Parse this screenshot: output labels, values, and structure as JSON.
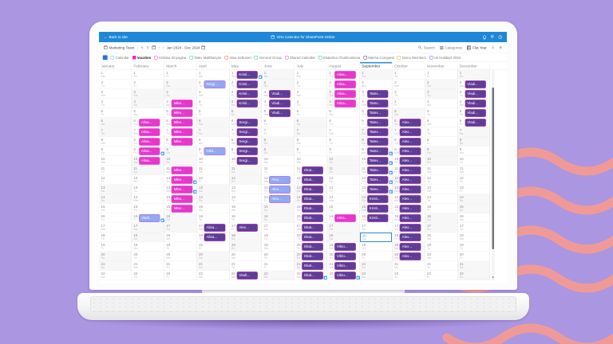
{
  "palette": {
    "background": "#ab96e2",
    "wave": "#f09a97",
    "titlebar_blue": "#1f87d7",
    "accent_blue": "#2a8cdd",
    "select_all_blue": "#2a6fd6",
    "variants": {
      "magenta": {
        "bg": "#e637cb",
        "border": "#f57fe4"
      },
      "purple": {
        "bg": "#5e3d96",
        "border": "#e44fd6"
      },
      "blue": {
        "bg": "#8fa9f2",
        "border": "#e44fd6"
      }
    }
  },
  "glyphs": {
    "back_arrow": "←",
    "separator": "|",
    "caret": "∨",
    "refresh": "↻",
    "prev": "‹",
    "next": "›",
    "move": "⊕",
    "gear": "⚙",
    "help": "?",
    "scroll_arrow": "▾"
  },
  "titlebar": {
    "back_label": "Back to site",
    "app_title": "Virto Calendar for SharePoint Online",
    "icon_names": [
      "bell-icon",
      "gear-icon",
      "help-icon"
    ]
  },
  "toolbar": {
    "team_label": "Marketing Team",
    "date_range": "Jan 2024 - Dec 2024",
    "search_label": "Search",
    "categories_label": "Categories",
    "view_label": "Flat Year"
  },
  "legend": {
    "items": [
      {
        "label": "Calendar",
        "color": "#56bdf5",
        "filled": false,
        "bold": false
      },
      {
        "label": "Vacation",
        "color": "#e227c4",
        "filled": true,
        "bold": true
      },
      {
        "label": "Kristina Sinyugina",
        "color": "#ee3ec9",
        "filled": false,
        "bold": false
      },
      {
        "label": "Tatev Malkhasyan",
        "color": "#3ecf6a",
        "filled": false,
        "bold": false
      },
      {
        "label": "Alisa Kettunen",
        "color": "#f25a50",
        "filled": false,
        "bold": false
      },
      {
        "label": "General Group",
        "color": "#2fc956",
        "filled": false,
        "bold": false
      },
      {
        "label": "Shared Calendar",
        "color": "#d44fd2",
        "filled": false,
        "bold": false
      },
      {
        "label": "Ekaterina Chukhontseva",
        "color": "#35c25f",
        "filled": false,
        "bold": false
      },
      {
        "label": "Marina Conquest",
        "color": "#4b2a86",
        "filled": false,
        "bold": false
      },
      {
        "label": "Demo Members",
        "color": "#f5a623",
        "filled": false,
        "bold": false
      },
      {
        "label": "Us Holidays 2024",
        "color": "#7a5bd6",
        "filled": false,
        "bold": false
      }
    ]
  },
  "calendar": {
    "weekdays": [
      "Mo",
      "Tu",
      "We",
      "Th",
      "Fr",
      "Sa",
      "Su"
    ],
    "visible_days": 22,
    "selected_month_index": 8,
    "today": {
      "month_index": 8,
      "day": 18
    },
    "months": [
      {
        "name": "January",
        "start_dow": "Mo"
      },
      {
        "name": "February",
        "start_dow": "Th"
      },
      {
        "name": "March",
        "start_dow": "Fr"
      },
      {
        "name": "April",
        "start_dow": "Mo"
      },
      {
        "name": "May",
        "start_dow": "We"
      },
      {
        "name": "June",
        "start_dow": "Sa"
      },
      {
        "name": "July",
        "start_dow": "Mo"
      },
      {
        "name": "August",
        "start_dow": "Th"
      },
      {
        "name": "September",
        "start_dow": "Su"
      },
      {
        "name": "October",
        "start_dow": "Tu"
      },
      {
        "name": "November",
        "start_dow": "Fr"
      },
      {
        "name": "December",
        "start_dow": "Su"
      }
    ],
    "events": [
      {
        "month": 1,
        "label": "Alisa...",
        "start": 6,
        "end": 10,
        "variant": "magenta",
        "flags": [
          9
        ]
      },
      {
        "month": 1,
        "label": "Vladi...",
        "start": 16,
        "end": 16,
        "variant": "blue",
        "flags": [
          16
        ]
      },
      {
        "month": 2,
        "label": "Mike...",
        "start": 4,
        "end": 8,
        "variant": "magenta",
        "flags": []
      },
      {
        "month": 2,
        "label": "Mike...",
        "start": 11,
        "end": 15,
        "variant": "magenta",
        "flags": [
          12,
          13
        ]
      },
      {
        "month": 3,
        "label": "Sergi...",
        "start": 2,
        "end": 2,
        "variant": "blue",
        "flags": []
      },
      {
        "month": 3,
        "label": "Nikit...",
        "start": 9,
        "end": 9,
        "variant": "blue",
        "flags": []
      },
      {
        "month": 3,
        "label": "Alisa...",
        "start": 17,
        "end": 18,
        "variant": "purple",
        "flags": []
      },
      {
        "month": 4,
        "label": "Kristi...",
        "start": 1,
        "end": 4,
        "variant": "purple",
        "flags": [
          1
        ]
      },
      {
        "month": 4,
        "label": "Sergi...",
        "start": 6,
        "end": 10,
        "variant": "purple",
        "flags": []
      },
      {
        "month": 4,
        "label": "Alex...",
        "start": 17,
        "end": 17,
        "variant": "purple",
        "flags": []
      },
      {
        "month": 4,
        "label": "Vladi...",
        "start": 22,
        "end": 22,
        "variant": "purple",
        "flags": []
      },
      {
        "month": 5,
        "label": "Vladi...",
        "start": 3,
        "end": 5,
        "variant": "purple",
        "flags": []
      },
      {
        "month": 5,
        "label": "Alex...",
        "start": 12,
        "end": 14,
        "variant": "blue",
        "flags": []
      },
      {
        "month": 6,
        "label": "Ekat...",
        "start": 11,
        "end": 22,
        "variant": "purple",
        "flags": [
          22
        ]
      },
      {
        "month": 7,
        "label": "Alisa...",
        "start": 1,
        "end": 4,
        "variant": "magenta",
        "flags": []
      },
      {
        "month": 7,
        "label": "Alisa...",
        "start": 16,
        "end": 16,
        "variant": "magenta",
        "flags": []
      },
      {
        "month": 7,
        "label": "Vikto...",
        "start": 19,
        "end": 22,
        "variant": "purple",
        "flags": [
          22
        ]
      },
      {
        "month": 8,
        "label": "Tatev...",
        "start": 3,
        "end": 13,
        "variant": "purple",
        "flags": [
          9,
          10,
          11,
          12,
          13
        ]
      },
      {
        "month": 8,
        "label": "Kristi...",
        "start": 14,
        "end": 16,
        "variant": "purple",
        "flags": []
      },
      {
        "month": 9,
        "label": "Alex...",
        "start": 6,
        "end": 20,
        "variant": "purple",
        "flags": []
      },
      {
        "month": 11,
        "label": "Vladi...",
        "start": 2,
        "end": 6,
        "variant": "purple",
        "flags": []
      }
    ]
  }
}
